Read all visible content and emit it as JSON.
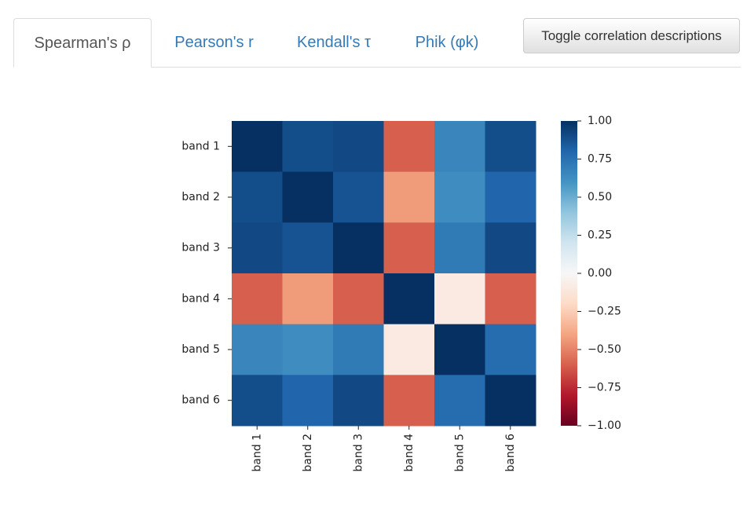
{
  "tabs": [
    "Spearman's ρ",
    "Pearson's r",
    "Kendall's τ",
    "Phik (φk)"
  ],
  "button": "Toggle correlation descriptions",
  "chart_data": {
    "type": "heatmap",
    "x_labels": [
      "band 1",
      "band 2",
      "band 3",
      "band 4",
      "band 5",
      "band 6"
    ],
    "y_labels": [
      "band 1",
      "band 2",
      "band 3",
      "band 4",
      "band 5",
      "band 6"
    ],
    "z": [
      [
        1.0,
        0.89,
        0.91,
        -0.6,
        0.66,
        0.89
      ],
      [
        0.89,
        1.0,
        0.87,
        -0.43,
        0.63,
        0.8
      ],
      [
        0.91,
        0.87,
        1.0,
        -0.6,
        0.71,
        0.91
      ],
      [
        -0.6,
        -0.43,
        -0.6,
        1.0,
        -0.09,
        -0.6
      ],
      [
        0.66,
        0.63,
        0.71,
        -0.09,
        1.0,
        0.77
      ],
      [
        0.89,
        0.8,
        0.91,
        -0.6,
        0.77,
        1.0
      ]
    ],
    "zlim": [
      -1,
      1
    ],
    "colormap": [
      "#67001f",
      "#b2182b",
      "#d6604d",
      "#f4a582",
      "#fddbc7",
      "#f7f7f7",
      "#d1e5f0",
      "#92c5de",
      "#4393c3",
      "#2166ac",
      "#053061"
    ],
    "zticks": [
      {
        "value": 1,
        "label": "1.00"
      },
      {
        "value": 0.75,
        "label": "0.75"
      },
      {
        "value": 0.5,
        "label": "0.50"
      },
      {
        "value": 0.25,
        "label": "0.25"
      },
      {
        "value": 0,
        "label": "0.00"
      },
      {
        "value": -0.25,
        "label": "−0.25"
      },
      {
        "value": -0.5,
        "label": "−0.50"
      },
      {
        "value": -0.75,
        "label": "−0.75"
      },
      {
        "value": -1,
        "label": "−1.00"
      }
    ]
  }
}
